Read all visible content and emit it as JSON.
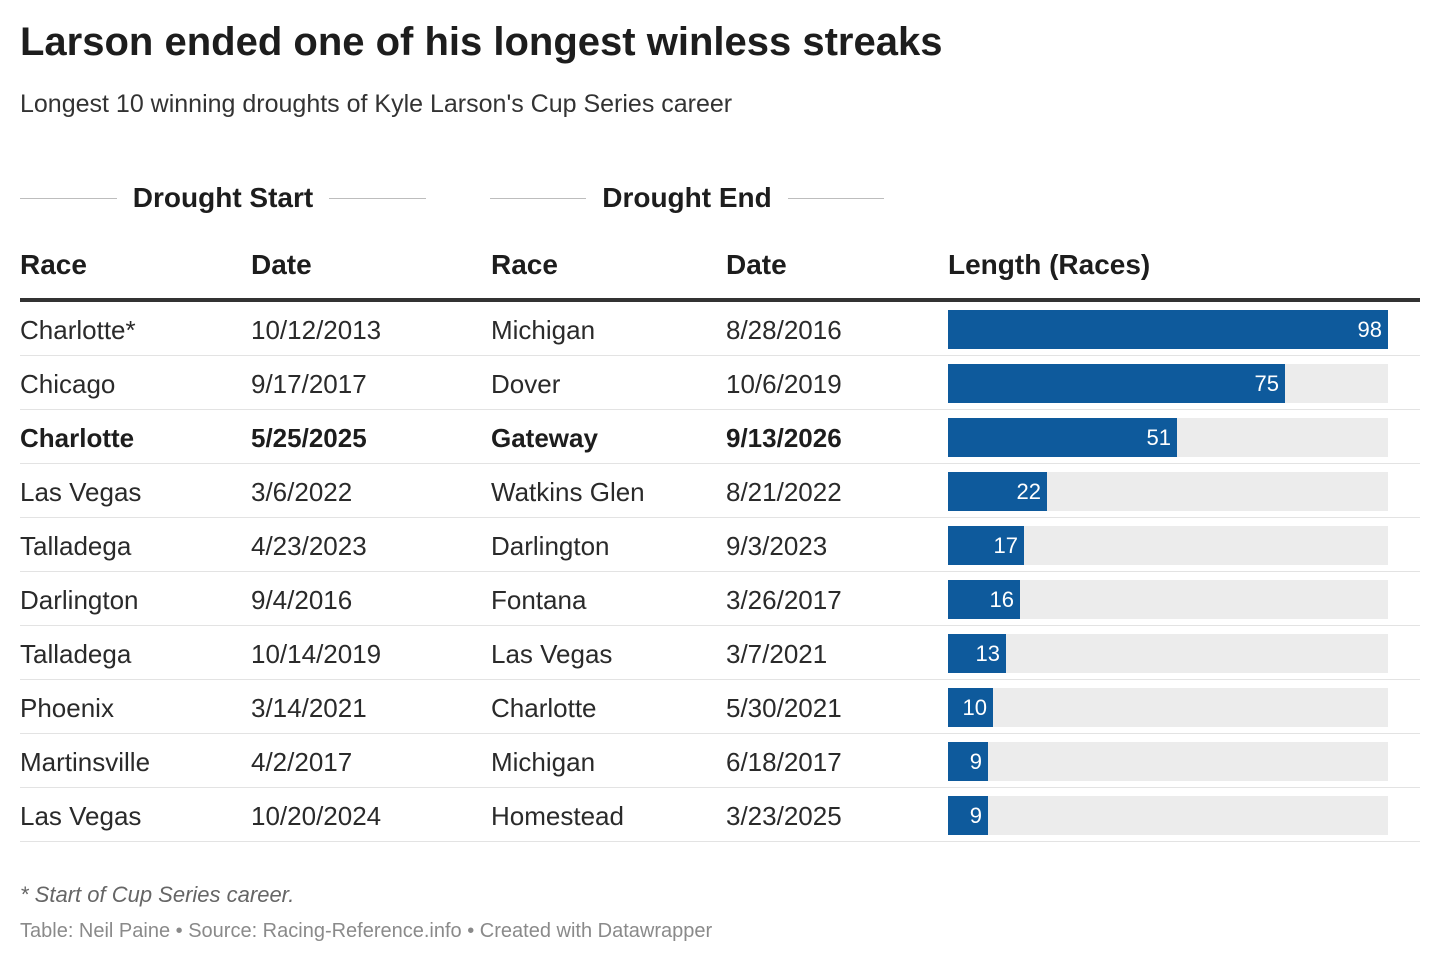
{
  "title": "Larson ended one of his longest winless streaks",
  "subtitle": "Longest 10 winning droughts of Kyle Larson's Cup Series career",
  "group_headers": {
    "start": "Drought Start",
    "end": "Drought End"
  },
  "columns": {
    "start_race": "Race",
    "start_date": "Date",
    "end_race": "Race",
    "end_date": "Date",
    "length": "Length (Races)"
  },
  "colors": {
    "bar": "#0e5a9c",
    "track": "#ececec",
    "rule": "#333333"
  },
  "chart_data": {
    "type": "table",
    "bar_column": "Length (Races)",
    "bar_max": 98,
    "rows": [
      {
        "start_race": "Charlotte*",
        "start_date": "10/12/2013",
        "end_race": "Michigan",
        "end_date": "8/28/2016",
        "length": 98,
        "highlight": false
      },
      {
        "start_race": "Chicago",
        "start_date": "9/17/2017",
        "end_race": "Dover",
        "end_date": "10/6/2019",
        "length": 75,
        "highlight": false
      },
      {
        "start_race": "Charlotte",
        "start_date": "5/25/2025",
        "end_race": "Gateway",
        "end_date": "9/13/2026",
        "length": 51,
        "highlight": true
      },
      {
        "start_race": "Las Vegas",
        "start_date": "3/6/2022",
        "end_race": "Watkins Glen",
        "end_date": "8/21/2022",
        "length": 22,
        "highlight": false
      },
      {
        "start_race": "Talladega",
        "start_date": "4/23/2023",
        "end_race": "Darlington",
        "end_date": "9/3/2023",
        "length": 17,
        "highlight": false
      },
      {
        "start_race": "Darlington",
        "start_date": "9/4/2016",
        "end_race": "Fontana",
        "end_date": "3/26/2017",
        "length": 16,
        "highlight": false
      },
      {
        "start_race": "Talladega",
        "start_date": "10/14/2019",
        "end_race": "Las Vegas",
        "end_date": "3/7/2021",
        "length": 13,
        "highlight": false
      },
      {
        "start_race": "Phoenix",
        "start_date": "3/14/2021",
        "end_race": "Charlotte",
        "end_date": "5/30/2021",
        "length": 10,
        "highlight": false
      },
      {
        "start_race": "Martinsville",
        "start_date": "4/2/2017",
        "end_race": "Michigan",
        "end_date": "6/18/2017",
        "length": 9,
        "highlight": false
      },
      {
        "start_race": "Las Vegas",
        "start_date": "10/20/2024",
        "end_race": "Homestead",
        "end_date": "3/23/2025",
        "length": 9,
        "highlight": false
      }
    ]
  },
  "footnote": "* Start of Cup Series career.",
  "credit": "Table: Neil Paine • Source: Racing-Reference.info • Created with Datawrapper"
}
